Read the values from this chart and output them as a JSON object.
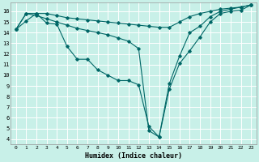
{
  "title": "",
  "xlabel": "Humidex (Indice chaleur)",
  "bg_color": "#c8f0e8",
  "line_color": "#006666",
  "xlim": [
    -0.5,
    23.5
  ],
  "ylim": [
    3.5,
    16.8
  ],
  "yticks": [
    4,
    5,
    6,
    7,
    8,
    9,
    10,
    11,
    12,
    13,
    14,
    15,
    16
  ],
  "xticks": [
    0,
    1,
    2,
    3,
    4,
    5,
    6,
    7,
    8,
    9,
    10,
    11,
    12,
    13,
    14,
    15,
    16,
    17,
    18,
    19,
    20,
    21,
    22,
    23
  ],
  "line1_x": [
    0,
    1,
    2,
    3,
    4,
    5,
    6,
    7,
    8,
    9,
    10,
    11,
    12,
    13,
    14,
    15,
    16,
    17,
    18,
    19,
    20,
    21,
    22,
    23
  ],
  "line1_y": [
    14.3,
    15.8,
    15.8,
    15.8,
    15.6,
    15.4,
    15.3,
    15.2,
    15.1,
    15.0,
    14.9,
    14.8,
    14.7,
    14.6,
    14.5,
    14.5,
    15.0,
    15.5,
    15.8,
    16.0,
    16.2,
    16.3,
    16.4,
    16.6
  ],
  "line2_x": [
    0,
    1,
    2,
    3,
    4,
    5,
    6,
    7,
    8,
    9,
    10,
    11,
    12,
    13,
    14,
    15,
    16,
    17,
    18,
    19,
    20,
    21,
    22,
    23
  ],
  "line2_y": [
    14.3,
    15.1,
    15.8,
    14.9,
    14.8,
    12.7,
    11.5,
    11.5,
    10.5,
    10.0,
    9.5,
    9.5,
    9.1,
    5.2,
    4.2,
    8.7,
    11.1,
    12.3,
    13.6,
    15.0,
    15.8,
    16.0,
    16.1,
    16.6
  ],
  "line3_x": [
    0,
    1,
    2,
    3,
    4,
    5,
    6,
    7,
    8,
    9,
    10,
    11,
    12,
    13,
    14,
    15,
    16,
    17,
    18,
    19,
    20,
    21,
    22,
    23
  ],
  "line3_y": [
    14.3,
    15.8,
    15.6,
    15.3,
    15.0,
    14.7,
    14.4,
    14.2,
    14.0,
    13.8,
    13.5,
    13.2,
    12.5,
    4.8,
    4.2,
    9.2,
    11.8,
    14.0,
    14.6,
    15.5,
    16.0,
    16.2,
    16.4,
    16.6
  ]
}
